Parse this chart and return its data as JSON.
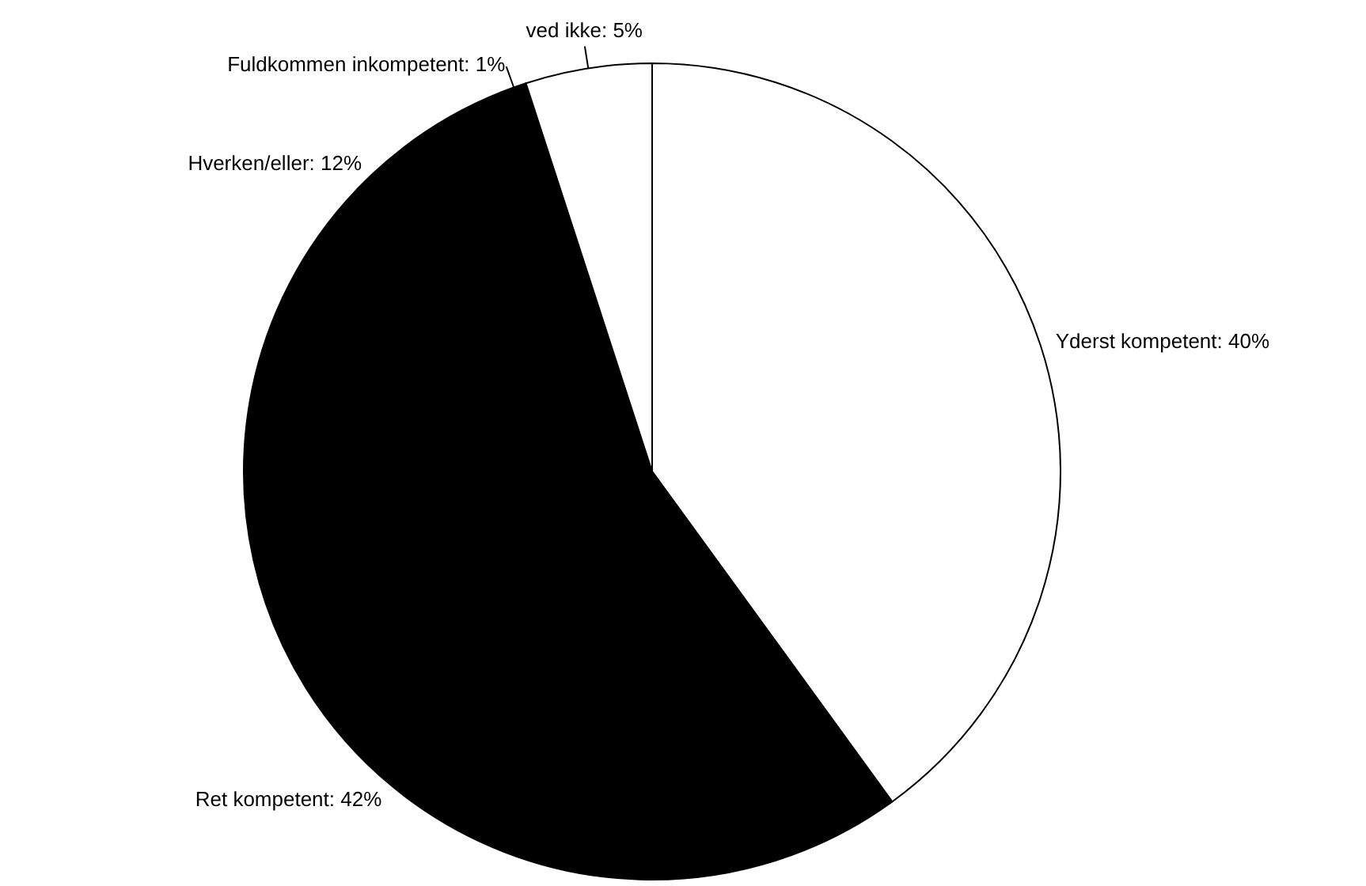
{
  "chart_data": {
    "type": "pie",
    "categories": [
      "Yderst kompetent",
      "Ret kompetent",
      "Hverken/eller",
      "Fuldkommen inkompetent",
      "ved ikke"
    ],
    "values": [
      40,
      42,
      12,
      1,
      5
    ],
    "colors": [
      "#ffffff",
      "#000000",
      "#000000",
      "#000000",
      "#ffffff"
    ],
    "value_labels": [
      ": 40%",
      ": 42%",
      ": 12%",
      ": 1%",
      ": 5%"
    ]
  }
}
